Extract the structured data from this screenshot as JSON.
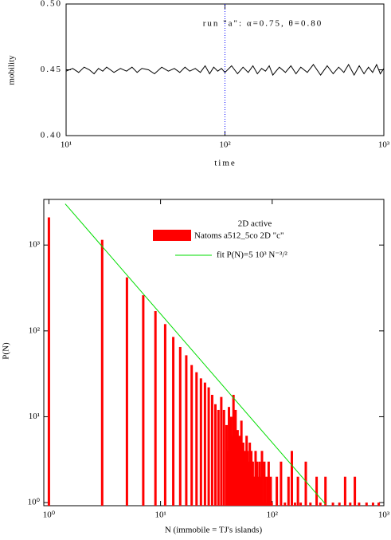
{
  "chart_data": [
    {
      "type": "line",
      "annotation": "run \"a\":  α=0.75,  θ=0.80",
      "x_label": "time",
      "y_label": "mobility",
      "log_x": true,
      "xlim": [
        10,
        1000
      ],
      "ylim": [
        0.4,
        0.5
      ],
      "xticks": [
        {
          "value": 10,
          "label": "10¹"
        },
        {
          "value": 100,
          "label": "10²"
        },
        {
          "value": 1000,
          "label": "10³"
        }
      ],
      "yticks": [
        {
          "value": 0.4,
          "label": "0.40"
        },
        {
          "value": 0.45,
          "label": "0.45"
        },
        {
          "value": 0.5,
          "label": "0.50"
        }
      ],
      "vline_x": 100,
      "vline_color": "#0000ff",
      "series": [
        {
          "color": "#000000",
          "x": [
            10,
            11,
            12,
            13,
            14,
            15,
            16,
            17,
            18,
            19,
            20,
            22,
            24,
            26,
            28,
            30,
            33,
            36,
            40,
            44,
            48,
            52,
            56,
            60,
            65,
            70,
            75,
            80,
            85,
            90,
            95,
            100,
            110,
            120,
            130,
            140,
            150,
            160,
            170,
            180,
            190,
            200,
            220,
            240,
            260,
            280,
            300,
            330,
            360,
            400,
            440,
            480,
            520,
            560,
            600,
            650,
            700,
            750,
            800,
            850,
            900,
            950,
            1000
          ],
          "values": [
            0.449,
            0.451,
            0.448,
            0.452,
            0.45,
            0.447,
            0.451,
            0.449,
            0.452,
            0.45,
            0.448,
            0.451,
            0.449,
            0.452,
            0.448,
            0.451,
            0.45,
            0.447,
            0.452,
            0.449,
            0.451,
            0.448,
            0.452,
            0.449,
            0.451,
            0.448,
            0.453,
            0.447,
            0.452,
            0.449,
            0.451,
            0.448,
            0.453,
            0.447,
            0.452,
            0.448,
            0.453,
            0.447,
            0.451,
            0.449,
            0.453,
            0.446,
            0.452,
            0.448,
            0.453,
            0.447,
            0.452,
            0.448,
            0.454,
            0.446,
            0.453,
            0.447,
            0.452,
            0.448,
            0.454,
            0.446,
            0.453,
            0.447,
            0.452,
            0.448,
            0.454,
            0.447,
            0.451
          ]
        }
      ]
    },
    {
      "type": "bar",
      "legend_title": "2D active",
      "x_label": "N (immobile = TJ's islands)",
      "y_label": "P(N)",
      "log_x": true,
      "log_y": true,
      "xlim": [
        0.9,
        1000
      ],
      "ylim": [
        0.92,
        3400
      ],
      "xticks": [
        {
          "value": 1,
          "label": "10⁰"
        },
        {
          "value": 10,
          "label": "10¹"
        },
        {
          "value": 100,
          "label": "10²"
        },
        {
          "value": 1000,
          "label": "10³"
        }
      ],
      "yticks": [
        {
          "value": 1,
          "label": "10⁰"
        },
        {
          "value": 10,
          "label": "10¹"
        },
        {
          "value": 100,
          "label": "10²"
        },
        {
          "value": 1000,
          "label": "10³"
        }
      ],
      "series": [
        {
          "name": "Natoms a512_5co 2D \"c\"",
          "color": "#ff0000",
          "x": [
            1,
            3,
            5,
            7,
            9,
            11,
            13,
            15,
            17,
            19,
            21,
            23,
            25,
            27,
            29,
            31,
            33,
            35,
            37,
            39,
            40,
            41,
            42,
            43,
            44,
            45,
            46,
            47,
            48,
            49,
            50,
            51,
            52,
            53,
            54,
            55,
            56,
            57,
            58,
            59,
            60,
            61,
            62,
            63,
            64,
            65,
            66,
            67,
            69,
            70,
            71,
            73,
            75,
            77,
            79,
            81,
            83,
            85,
            87,
            89,
            91,
            93,
            95,
            97,
            99,
            110,
            120,
            130,
            140,
            150,
            160,
            170,
            180,
            200,
            220,
            250,
            270,
            300,
            350,
            400,
            450,
            500,
            550,
            600,
            700,
            800,
            900
          ],
          "values": [
            2100,
            1150,
            420,
            260,
            170,
            120,
            85,
            65,
            52,
            40,
            33,
            28,
            25,
            22,
            18,
            14,
            12,
            17,
            12,
            8,
            4,
            13,
            3,
            10,
            6,
            18,
            3,
            12,
            4,
            7,
            3,
            6,
            5,
            9,
            2,
            5,
            3,
            4,
            2,
            6,
            4,
            3,
            2,
            5,
            2,
            4,
            3,
            3,
            2,
            2,
            4,
            3,
            2,
            3,
            2,
            4,
            1,
            3,
            2,
            1,
            2,
            3,
            1,
            2,
            1,
            2,
            3,
            1,
            2,
            4,
            1,
            2,
            1,
            3,
            1,
            2,
            1,
            2,
            1,
            1,
            2,
            1,
            2,
            1,
            1,
            1,
            1
          ]
        },
        {
          "name": "fit P(N)=5 10³ N⁻³/²",
          "color": "#00dd00",
          "x": [
            1.4,
            300
          ],
          "values": [
            3018,
            0.962
          ]
        }
      ]
    }
  ]
}
